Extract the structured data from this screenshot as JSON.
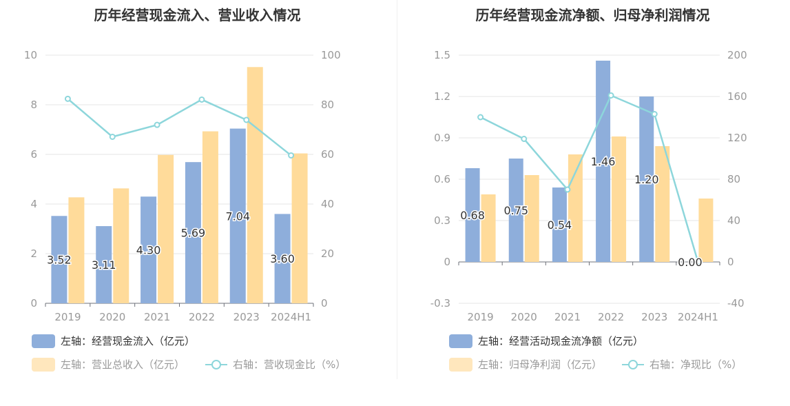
{
  "colors": {
    "blue": "#8eaedb",
    "orange": "#ffdb9a",
    "line": "#8dd6db",
    "axis": "#999999",
    "grid": "#e6e6e6"
  },
  "charts": [
    {
      "title": "历年经营现金流入、营业收入情况",
      "legend": {
        "bar1": "左轴：经营现金流入（亿元）",
        "bar2": "左轴：营业总收入（亿元）",
        "line": "右轴：营收现金比（%）"
      }
    },
    {
      "title": "历年经营现金流净额、归母净利润情况",
      "legend": {
        "bar1": "左轴：经营活动现金流净额（亿元）",
        "bar2": "左轴：归母净利润（亿元）",
        "line": "右轴：净现比（%）"
      }
    }
  ],
  "chart_data": [
    {
      "type": "bar",
      "title": "历年经营现金流入、营业收入情况",
      "categories": [
        "2019",
        "2020",
        "2021",
        "2022",
        "2023",
        "2024H1"
      ],
      "y_left": {
        "ticks": [
          "0",
          "2",
          "4",
          "6",
          "8",
          "10"
        ],
        "range": [
          0,
          10
        ]
      },
      "y_right": {
        "ticks": [
          "0",
          "20",
          "40",
          "60",
          "80",
          "100"
        ],
        "range": [
          0,
          100
        ]
      },
      "series": [
        {
          "name": "左轴：经营现金流入（亿元）",
          "type": "bar",
          "axis": "left",
          "color": "#8eaedb",
          "values": [
            3.52,
            3.11,
            4.3,
            5.69,
            7.04,
            3.6
          ],
          "labels": [
            "3.52",
            "3.11",
            "4.30",
            "5.69",
            "7.04",
            "3.60"
          ]
        },
        {
          "name": "左轴：营业总收入（亿元）",
          "type": "bar",
          "axis": "left",
          "color": "#ffdb9a",
          "values": [
            4.27,
            4.63,
            5.98,
            6.93,
            9.52,
            6.04
          ]
        },
        {
          "name": "右轴：营收现金比（%）",
          "type": "line",
          "axis": "right",
          "color": "#8dd6db",
          "values": [
            82.4,
            67.1,
            71.9,
            82.1,
            73.9,
            59.6
          ]
        }
      ]
    },
    {
      "type": "bar",
      "title": "历年经营现金流净额、归母净利润情况",
      "categories": [
        "2019",
        "2020",
        "2021",
        "2022",
        "2023",
        "2024H1"
      ],
      "y_left": {
        "ticks": [
          "-0.3",
          "0",
          "0.3",
          "0.6",
          "0.9",
          "1.2",
          "1.5"
        ],
        "range": [
          -0.3,
          1.5
        ]
      },
      "y_right": {
        "ticks": [
          "-40",
          "0",
          "40",
          "80",
          "120",
          "160",
          "200"
        ],
        "range": [
          -40,
          200
        ]
      },
      "series": [
        {
          "name": "左轴：经营活动现金流净额（亿元）",
          "type": "bar",
          "axis": "left",
          "color": "#8eaedb",
          "values": [
            0.68,
            0.75,
            0.54,
            1.46,
            1.2,
            0.0
          ],
          "labels": [
            "0.68",
            "0.75",
            "0.54",
            "1.46",
            "1.20",
            "0.00"
          ]
        },
        {
          "name": "左轴：归母净利润（亿元）",
          "type": "bar",
          "axis": "left",
          "color": "#ffdb9a",
          "values": [
            0.49,
            0.63,
            0.78,
            0.91,
            0.84,
            0.46
          ]
        },
        {
          "name": "右轴：净现比（%）",
          "type": "line",
          "axis": "right",
          "color": "#8dd6db",
          "values": [
            140,
            119,
            70,
            161,
            143,
            0
          ]
        }
      ]
    }
  ]
}
